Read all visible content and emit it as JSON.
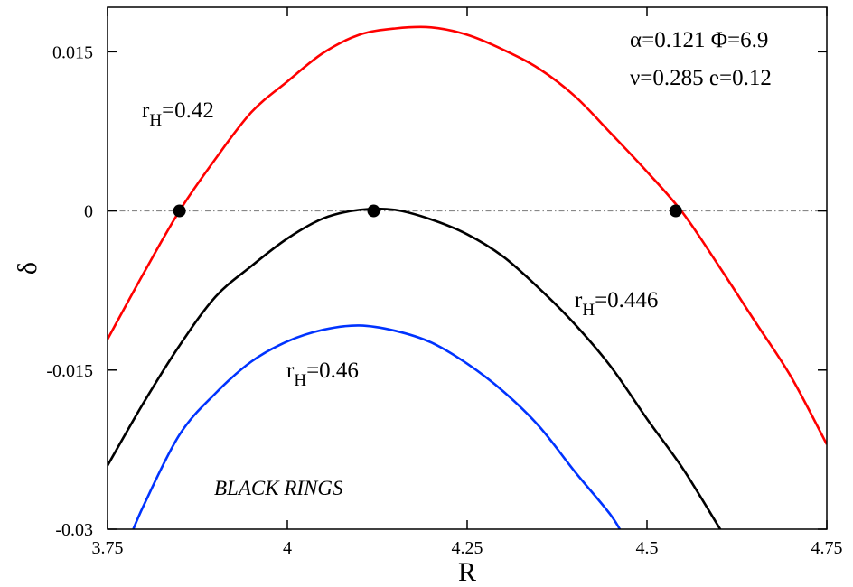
{
  "chart_data": {
    "type": "line",
    "xlabel": "R",
    "ylabel": "δ",
    "xlim": [
      3.75,
      4.75
    ],
    "ylim": [
      -0.03,
      0.0192
    ],
    "xticks": [
      3.75,
      4.0,
      4.25,
      4.5,
      4.75
    ],
    "xtick_labels": [
      "3.75",
      "4",
      "4.25",
      "4.5",
      "4.75"
    ],
    "yticks": [
      0.015,
      0.0,
      -0.015,
      -0.03
    ],
    "ytick_labels": [
      "0.015",
      "0",
      "-0.015",
      "-0.03"
    ],
    "grid": false,
    "reference_line": {
      "y": 0,
      "style": "dash-dot",
      "color": "#888888"
    },
    "series": [
      {
        "name": "r_H=0.42",
        "color": "#ff0000",
        "x": [
          3.75,
          3.8,
          3.85,
          3.9,
          3.95,
          4.0,
          4.05,
          4.1,
          4.15,
          4.2,
          4.25,
          4.3,
          4.35,
          4.4,
          4.45,
          4.5,
          4.55,
          4.6,
          4.65,
          4.7,
          4.75
        ],
        "y": [
          -0.0121,
          -0.0059,
          0.0,
          0.0049,
          0.0093,
          0.0122,
          0.0149,
          0.0166,
          0.0172,
          0.0173,
          0.0166,
          0.0152,
          0.0134,
          0.0108,
          0.0073,
          0.0037,
          -0.0002,
          -0.0052,
          -0.0104,
          -0.0156,
          -0.022
        ]
      },
      {
        "name": "r_H=0.446",
        "color": "#000000",
        "x": [
          3.75,
          3.8,
          3.85,
          3.9,
          3.95,
          4.0,
          4.05,
          4.1,
          4.15,
          4.2,
          4.25,
          4.3,
          4.35,
          4.4,
          4.45,
          4.5,
          4.55,
          4.6,
          4.62
        ],
        "y": [
          -0.024,
          -0.0181,
          -0.0127,
          -0.0081,
          -0.0052,
          -0.0026,
          -0.0007,
          0.0001,
          0.0001,
          -0.0008,
          -0.0022,
          -0.0043,
          -0.0073,
          -0.0107,
          -0.0147,
          -0.0196,
          -0.0243,
          -0.0298,
          -0.032
        ]
      },
      {
        "name": "r_H=0.46",
        "color": "#0033ff",
        "x": [
          3.78,
          3.8,
          3.85,
          3.9,
          3.95,
          4.0,
          4.05,
          4.1,
          4.15,
          4.2,
          4.25,
          4.3,
          4.35,
          4.4,
          4.45,
          4.47
        ],
        "y": [
          -0.031,
          -0.0278,
          -0.0211,
          -0.0172,
          -0.0142,
          -0.0123,
          -0.0112,
          -0.0108,
          -0.0113,
          -0.0124,
          -0.0144,
          -0.017,
          -0.0203,
          -0.0246,
          -0.0287,
          -0.031
        ]
      }
    ],
    "markers": [
      {
        "x": 3.85,
        "y": 0.0
      },
      {
        "x": 4.12,
        "y": 0.0
      },
      {
        "x": 4.54,
        "y": 0.0
      }
    ],
    "params_line1": "α=0.121 Φ=6.9",
    "params_line2": "ν=0.285 e=0.12",
    "curve_labels": [
      {
        "base": "r",
        "sub": "H",
        "value": "=0.42"
      },
      {
        "base": "r",
        "sub": "H",
        "value": "=0.446"
      },
      {
        "base": "r",
        "sub": "H",
        "value": "=0.46"
      }
    ],
    "annotation": "BLACK RINGS"
  }
}
